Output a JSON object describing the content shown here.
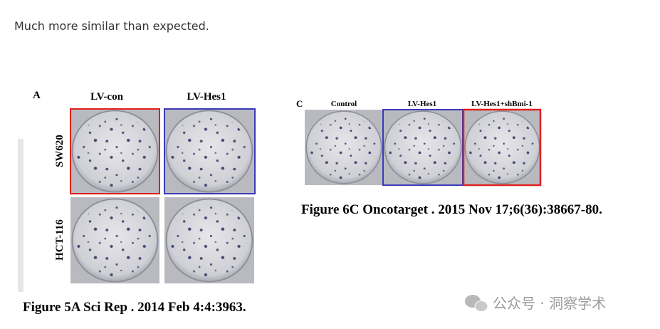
{
  "text": "Much more similar than expected.",
  "figures": [
    {
      "panel_label": "A",
      "column_labels": [
        "LV-con",
        "LV-Hes1"
      ],
      "row_labels": [
        "SW620",
        "HCT-116"
      ],
      "caption": "Figure 5A Sci Rep . 2014 Feb 4:4:3963."
    },
    {
      "panel_label": "C",
      "column_labels": [
        "Control",
        "LV-Hes1",
        "LV-Hes1+shBmi-1"
      ],
      "caption": "Figure 6C Oncotarget . 2015 Nov 17;6(36):38667-80."
    }
  ],
  "watermark": "公众号 · 洞察学术"
}
